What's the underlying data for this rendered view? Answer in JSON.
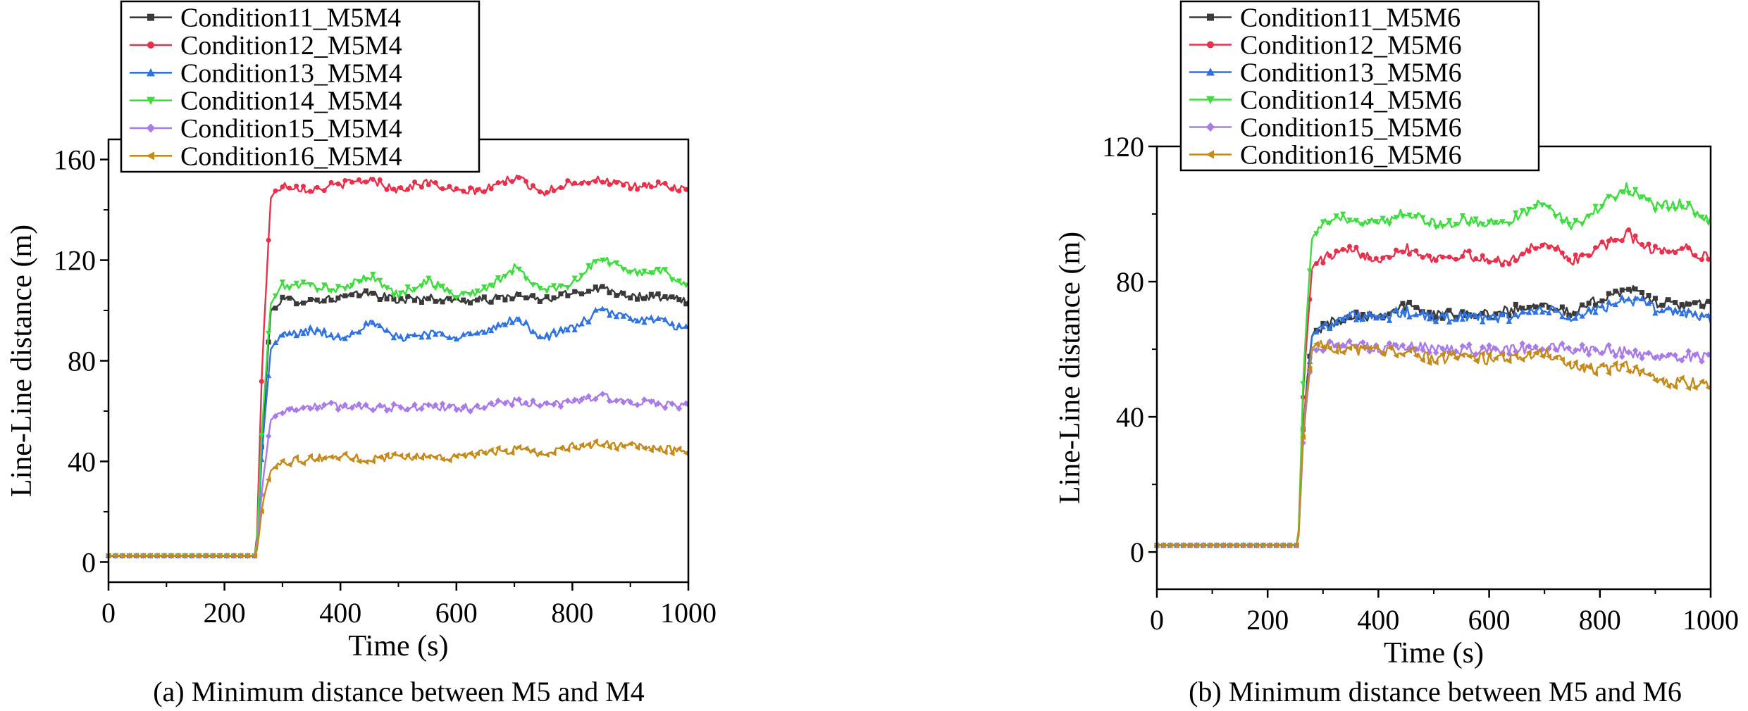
{
  "chart_data": [
    {
      "type": "line",
      "caption": "(a) Minimum distance between M5 and M4",
      "xlabel": "Time (s)",
      "ylabel": "Line-Line distance (m)",
      "xlim": [
        0,
        1000
      ],
      "ylim": [
        -8,
        168
      ],
      "xticks": [
        "0",
        "200",
        "400",
        "600",
        "800",
        "1000"
      ],
      "yticks": [
        "0",
        "40",
        "80",
        "120",
        "160"
      ],
      "grid": false,
      "legend_position": "top-left",
      "step_time": 255,
      "initial_value": 2.5,
      "series": [
        {
          "name": "Condition11_M5M4",
          "color": "#3a3a3a",
          "marker": "square",
          "x": [
            0,
            255,
            265,
            280,
            300,
            350,
            400,
            450,
            500,
            550,
            600,
            650,
            700,
            750,
            800,
            850,
            900,
            950,
            1000
          ],
          "y": [
            2.5,
            2.5,
            50,
            100,
            104,
            104,
            105,
            107,
            104,
            105,
            104,
            104,
            106,
            104,
            107,
            109,
            106,
            105,
            104
          ]
        },
        {
          "name": "Condition12_M5M4",
          "color": "#e8304c",
          "marker": "circle",
          "x": [
            0,
            255,
            265,
            280,
            300,
            350,
            400,
            450,
            500,
            550,
            600,
            650,
            700,
            750,
            800,
            850,
            900,
            950,
            1000
          ],
          "y": [
            2.5,
            2.5,
            80,
            145,
            150,
            148,
            150,
            152,
            148,
            151,
            147,
            148,
            153,
            147,
            151,
            152,
            149,
            150,
            148
          ]
        },
        {
          "name": "Condition13_M5M4",
          "color": "#2f72e0",
          "marker": "triangle-up",
          "x": [
            0,
            255,
            265,
            280,
            300,
            350,
            400,
            450,
            500,
            550,
            600,
            650,
            700,
            750,
            800,
            850,
            900,
            950,
            1000
          ],
          "y": [
            2.5,
            2.5,
            45,
            85,
            90,
            92,
            89,
            95,
            89,
            91,
            90,
            91,
            97,
            89,
            93,
            100,
            97,
            96,
            92
          ]
        },
        {
          "name": "Condition14_M5M4",
          "color": "#3fdc3f",
          "marker": "triangle-down",
          "x": [
            0,
            255,
            265,
            280,
            300,
            350,
            400,
            450,
            500,
            550,
            600,
            650,
            700,
            750,
            800,
            850,
            900,
            950,
            1000
          ],
          "y": [
            2.5,
            2.5,
            55,
            103,
            110,
            110,
            108,
            114,
            106,
            112,
            106,
            108,
            117,
            108,
            111,
            121,
            115,
            116,
            110
          ]
        },
        {
          "name": "Condition15_M5M4",
          "color": "#a87be8",
          "marker": "diamond",
          "x": [
            0,
            255,
            265,
            280,
            300,
            350,
            400,
            450,
            500,
            550,
            600,
            650,
            700,
            750,
            800,
            850,
            900,
            950,
            1000
          ],
          "y": [
            2.5,
            2.5,
            30,
            57,
            60,
            62,
            62,
            62,
            61,
            62,
            61,
            62,
            64,
            62,
            64,
            66,
            63,
            63,
            62
          ]
        },
        {
          "name": "Condition16_M5M4",
          "color": "#c48a1b",
          "marker": "triangle-left",
          "x": [
            0,
            255,
            265,
            280,
            300,
            350,
            400,
            450,
            500,
            550,
            600,
            650,
            700,
            750,
            800,
            850,
            900,
            950,
            1000
          ],
          "y": [
            2.5,
            2.5,
            22,
            37,
            40,
            41,
            42,
            41,
            42,
            42,
            42,
            43,
            45,
            43,
            46,
            47,
            46,
            45,
            44
          ]
        }
      ]
    },
    {
      "type": "line",
      "caption": "(b) Minimum distance between M5 and M6",
      "xlabel": "Time (s)",
      "ylabel": "Line-Line distance (m)",
      "xlim": [
        0,
        1000
      ],
      "ylim": [
        -11,
        120
      ],
      "xticks": [
        "0",
        "200",
        "400",
        "600",
        "800",
        "1000"
      ],
      "yticks": [
        "0",
        "40",
        "80",
        "120"
      ],
      "grid": false,
      "legend_position": "top-left",
      "step_time": 255,
      "initial_value": 2,
      "series": [
        {
          "name": "Condition11_M5M6",
          "color": "#3a3a3a",
          "marker": "square",
          "x": [
            0,
            255,
            265,
            280,
            300,
            350,
            400,
            450,
            500,
            550,
            600,
            650,
            700,
            750,
            800,
            850,
            900,
            950,
            1000
          ],
          "y": [
            2,
            2,
            40,
            64,
            67,
            70,
            70,
            73,
            70,
            71,
            70,
            72,
            74,
            70,
            75,
            78,
            74,
            73,
            73
          ]
        },
        {
          "name": "Condition12_M5M6",
          "color": "#e8304c",
          "marker": "circle",
          "x": [
            0,
            255,
            265,
            280,
            300,
            350,
            400,
            450,
            500,
            550,
            600,
            650,
            700,
            750,
            800,
            850,
            900,
            950,
            1000
          ],
          "y": [
            2,
            2,
            50,
            84,
            87,
            89,
            87,
            90,
            87,
            88,
            86,
            87,
            92,
            86,
            90,
            94,
            89,
            90,
            87
          ]
        },
        {
          "name": "Condition13_M5M6",
          "color": "#2f72e0",
          "marker": "triangle-up",
          "x": [
            0,
            255,
            265,
            280,
            300,
            350,
            400,
            450,
            500,
            550,
            600,
            650,
            700,
            750,
            800,
            850,
            900,
            950,
            1000
          ],
          "y": [
            2,
            2,
            38,
            64,
            67,
            70,
            69,
            71,
            69,
            70,
            69,
            70,
            72,
            69,
            72,
            75,
            72,
            71,
            69
          ]
        },
        {
          "name": "Condition14_M5M6",
          "color": "#3fdc3f",
          "marker": "triangle-down",
          "x": [
            0,
            255,
            265,
            280,
            300,
            350,
            400,
            450,
            500,
            550,
            600,
            650,
            700,
            750,
            800,
            850,
            900,
            950,
            1000
          ],
          "y": [
            2,
            2,
            55,
            93,
            97,
            99,
            97,
            101,
            97,
            98,
            97,
            99,
            104,
            96,
            102,
            108,
            102,
            103,
            98
          ]
        },
        {
          "name": "Condition15_M5M6",
          "color": "#a87be8",
          "marker": "diamond",
          "x": [
            0,
            255,
            265,
            280,
            300,
            350,
            400,
            450,
            500,
            550,
            600,
            650,
            700,
            750,
            800,
            850,
            900,
            950,
            1000
          ],
          "y": [
            2,
            2,
            35,
            60,
            61,
            61,
            60,
            61,
            60,
            60,
            60,
            60,
            61,
            60,
            60,
            59,
            58,
            58,
            58
          ]
        },
        {
          "name": "Condition16_M5M6",
          "color": "#c48a1b",
          "marker": "triangle-left",
          "x": [
            0,
            255,
            265,
            280,
            300,
            350,
            400,
            450,
            500,
            550,
            600,
            650,
            700,
            750,
            800,
            850,
            900,
            950,
            1000
          ],
          "y": [
            2,
            2,
            38,
            61,
            61,
            60,
            59,
            60,
            57,
            58,
            57,
            58,
            59,
            55,
            54,
            55,
            51,
            50,
            50
          ]
        }
      ]
    }
  ]
}
